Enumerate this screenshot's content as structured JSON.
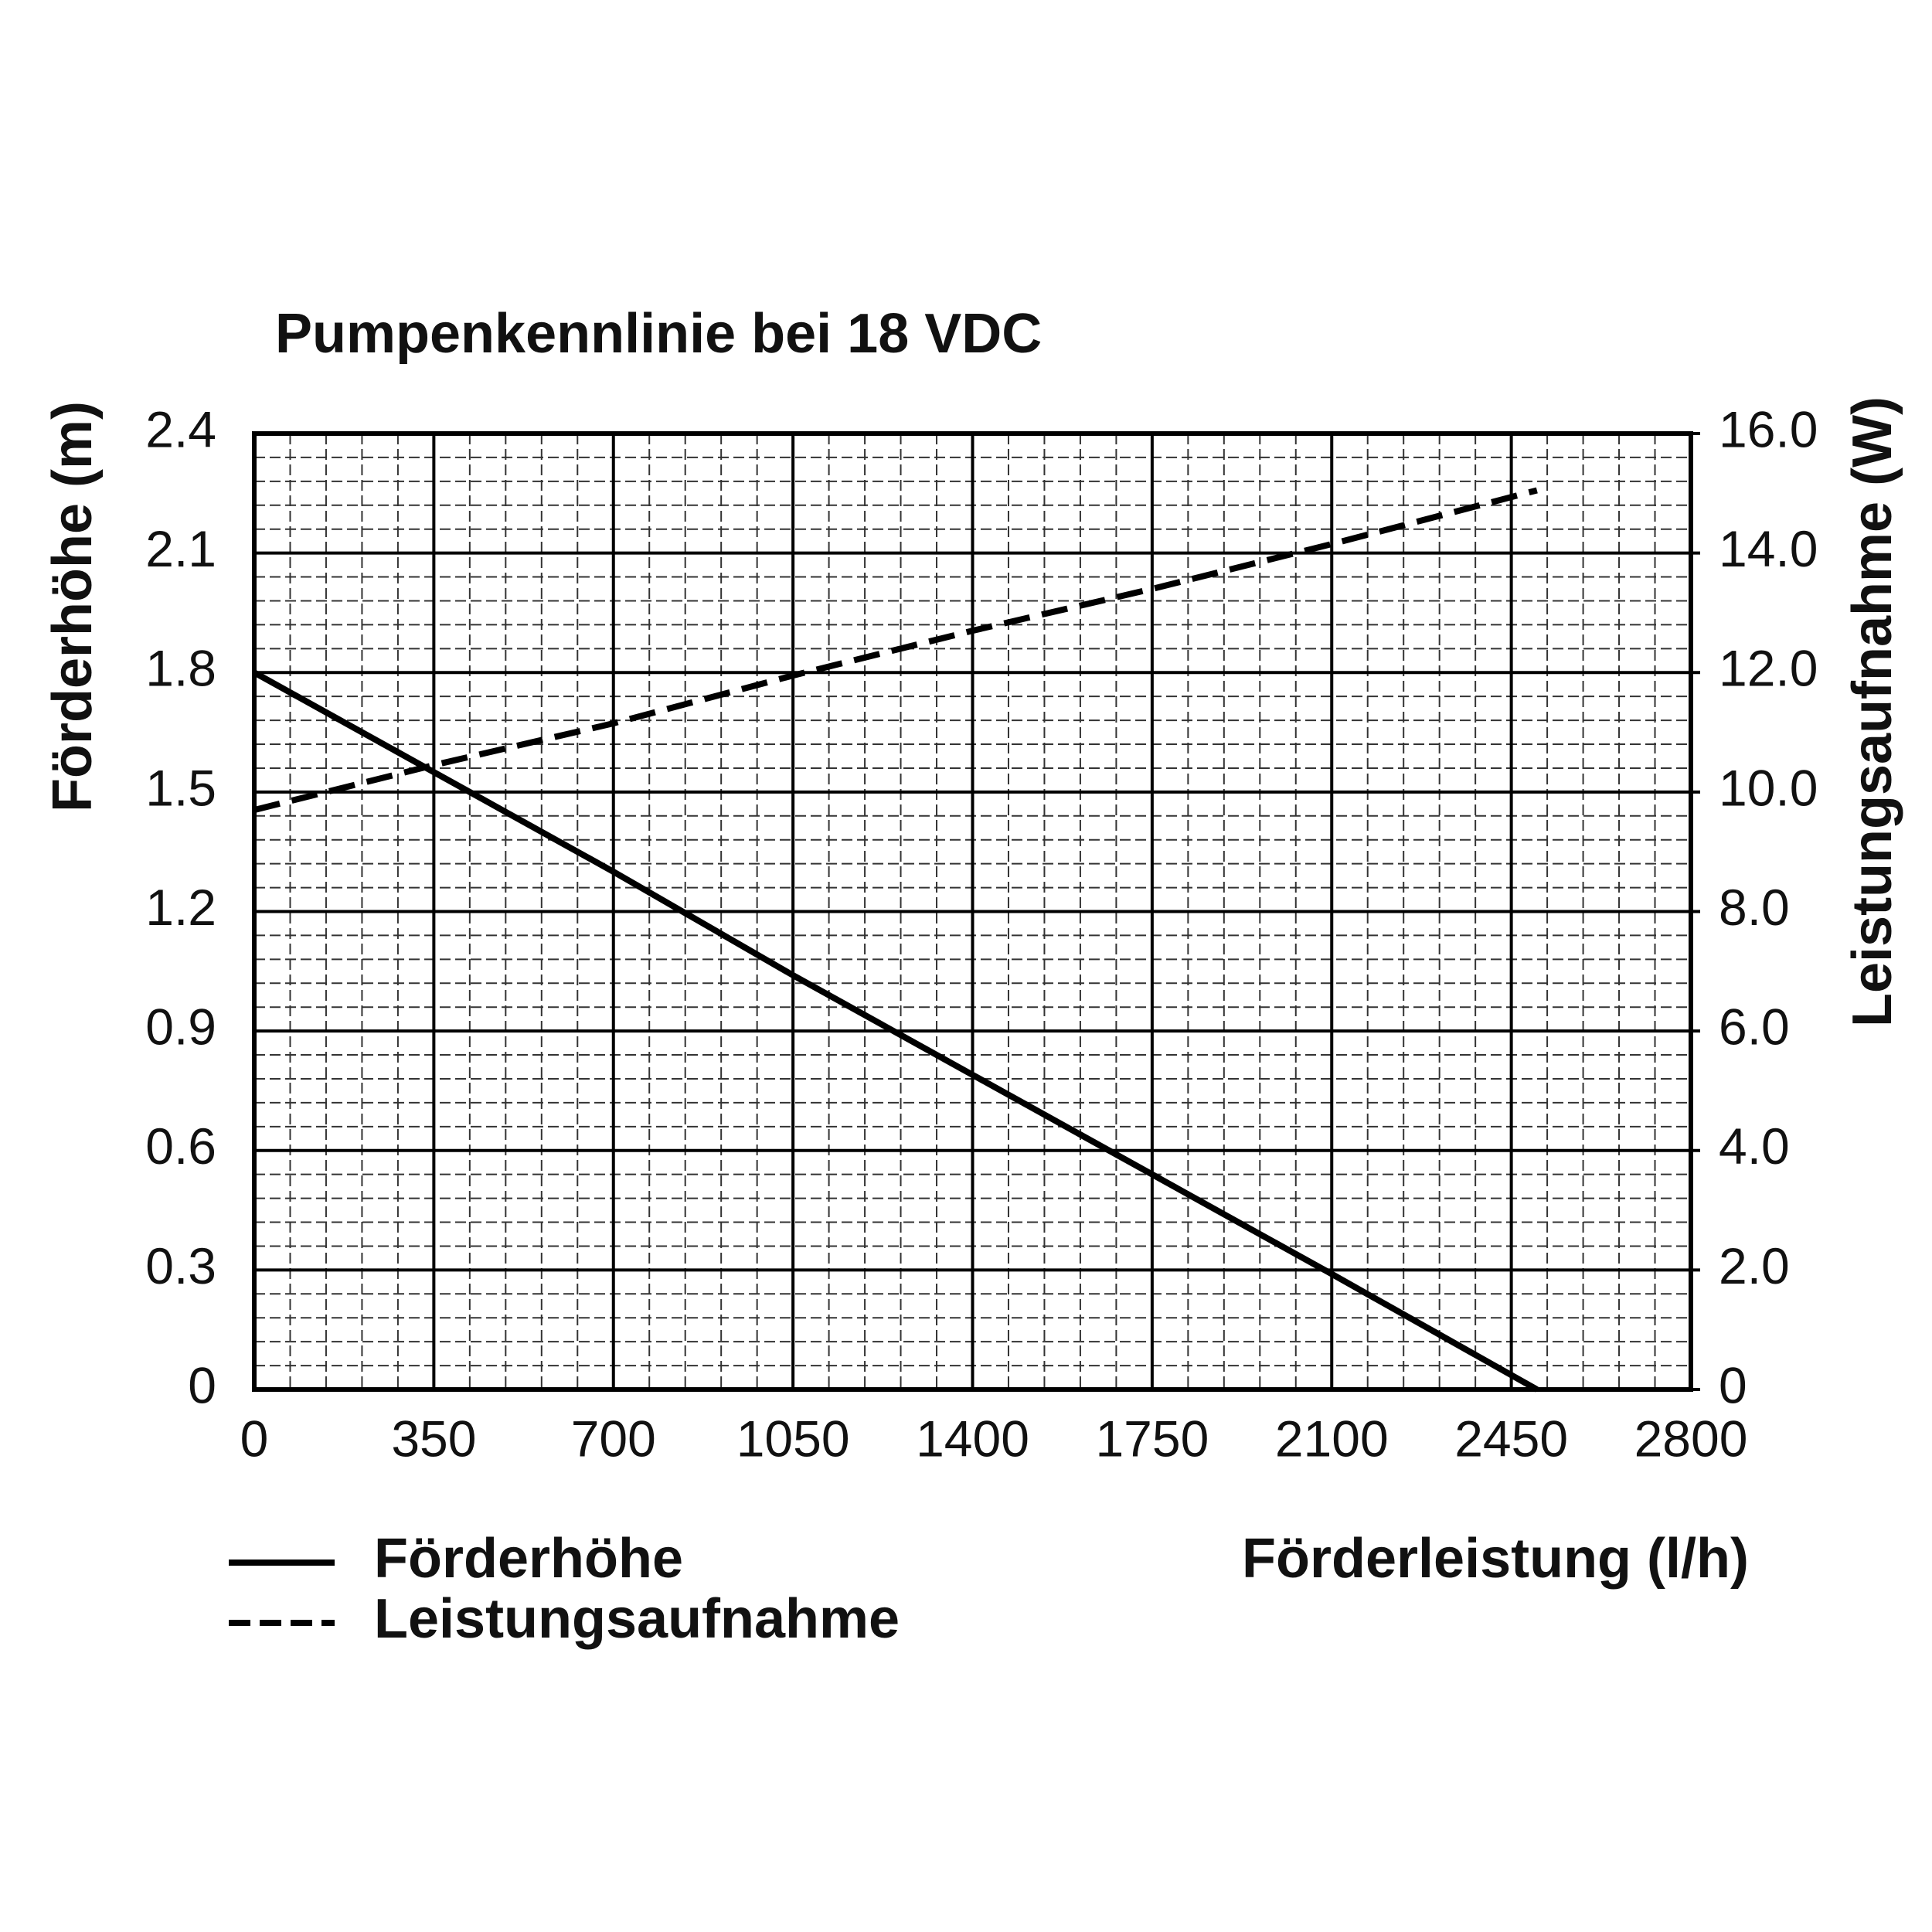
{
  "chart_data": {
    "type": "line",
    "title": "Pumpenkennlinie bei 18 VDC",
    "x_label": "Förderleistung (l/h)",
    "y_label": "Förderhöhe (m)",
    "y2_label": "Leistungsaufnahme (W)",
    "x": [
      0,
      350,
      700,
      1050,
      1400,
      1750,
      2100,
      2500
    ],
    "series": [
      {
        "name": "Förderhöhe",
        "color": "#000000",
        "style": "solid",
        "axis": "y",
        "values": [
          1.8,
          1.55,
          1.3,
          1.04,
          0.79,
          0.54,
          0.29,
          0
        ]
      },
      {
        "name": "Leistungsaufnahme",
        "color": "#000000",
        "style": "dashed",
        "axis": "y2",
        "values": [
          9.7,
          10.45,
          11.15,
          11.95,
          12.7,
          13.4,
          14.15,
          15.05
        ]
      }
    ],
    "xlim": [
      0,
      2800
    ],
    "xticks": [
      0,
      350,
      700,
      1050,
      1400,
      1750,
      2100,
      2450,
      2800
    ],
    "ylim": [
      0,
      2.4
    ],
    "yticks": [
      0,
      0.3,
      0.6,
      0.9,
      1.2,
      1.5,
      1.8,
      2.1,
      2.4
    ],
    "y2lim": [
      0,
      16
    ],
    "y2ticks": [
      0,
      {
        "value": 2,
        "label": "2.0"
      },
      {
        "value": 4,
        "label": "4.0"
      },
      {
        "value": 6,
        "label": "6.0"
      },
      {
        "value": 8,
        "label": "8.0"
      },
      {
        "value": 10,
        "label": "10.0"
      },
      {
        "value": 12,
        "label": "12.0"
      },
      {
        "value": 14,
        "label": "14.0"
      },
      {
        "value": 16,
        "label": "16.0"
      }
    ],
    "grid": true,
    "minor_grid": true,
    "legend": "bottom-left"
  }
}
